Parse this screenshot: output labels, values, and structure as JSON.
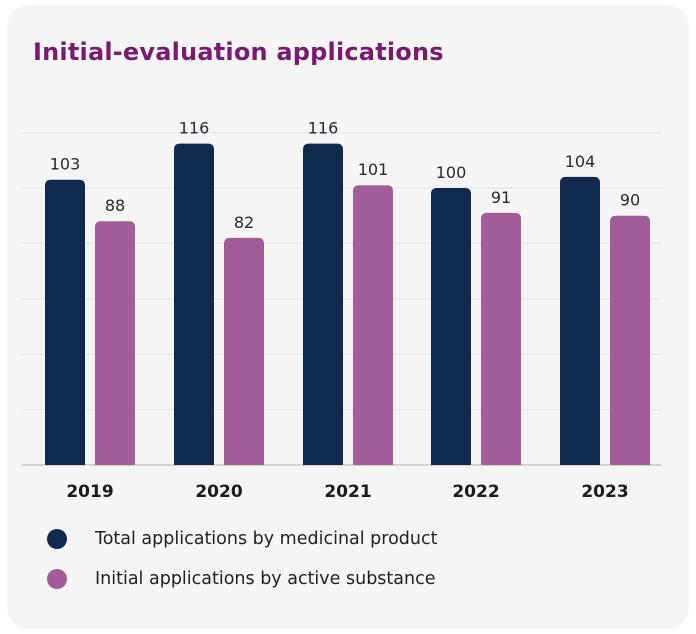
{
  "header": {
    "title": "Initial-evaluation applications"
  },
  "colors": {
    "title": "#7a1a72",
    "series1": "#0f2a4d",
    "series2": "#a25c98",
    "grid": "#e3e3e3",
    "axis": "#bdbdbd"
  },
  "legend": {
    "items": [
      {
        "label": "Total applications by medicinal product",
        "color": "#0f2a4d"
      },
      {
        "label": "Initial applications by active substance",
        "color": "#a25c98"
      }
    ]
  },
  "chart_data": {
    "type": "bar",
    "categories": [
      "2019",
      "2020",
      "2021",
      "2022",
      "2023"
    ],
    "series": [
      {
        "name": "Total applications by medicinal product",
        "values": [
          103,
          116,
          116,
          100,
          104
        ]
      },
      {
        "name": "Initial applications by active substance",
        "values": [
          88,
          82,
          101,
          91,
          90
        ]
      }
    ],
    "title": "Initial-evaluation applications",
    "ylim": [
      0,
      120
    ],
    "grid": true,
    "legend_position": "bottom"
  }
}
